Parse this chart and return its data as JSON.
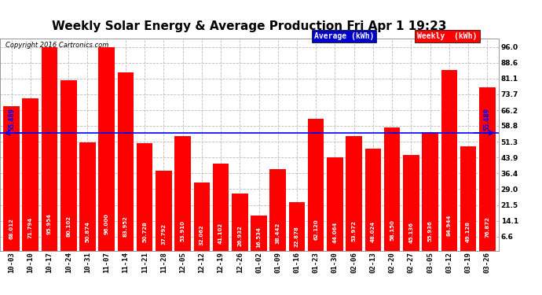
{
  "title": "Weekly Solar Energy & Average Production Fri Apr 1 19:23",
  "copyright": "Copyright 2016 Cartronics.com",
  "categories": [
    "10-03",
    "10-10",
    "10-17",
    "10-24",
    "10-31",
    "11-07",
    "11-14",
    "11-21",
    "11-28",
    "12-05",
    "12-12",
    "12-19",
    "12-26",
    "01-02",
    "01-09",
    "01-16",
    "01-23",
    "01-30",
    "02-06",
    "02-13",
    "02-20",
    "02-27",
    "03-05",
    "03-12",
    "03-19",
    "03-26"
  ],
  "values": [
    68.012,
    71.794,
    95.954,
    80.102,
    50.874,
    96.0,
    83.952,
    50.728,
    37.792,
    53.91,
    32.062,
    41.102,
    26.932,
    16.534,
    38.442,
    22.878,
    62.12,
    44.064,
    53.972,
    48.024,
    58.15,
    45.136,
    55.936,
    84.944,
    49.128,
    76.872
  ],
  "average": 55.489,
  "bar_color": "#ff0000",
  "avg_line_color": "#0000ff",
  "background_color": "#ffffff",
  "plot_bg_color": "#ffffff",
  "grid_color": "#bbbbbb",
  "yticks": [
    6.6,
    14.1,
    21.5,
    29.0,
    36.4,
    43.9,
    51.3,
    58.8,
    66.2,
    73.7,
    81.1,
    88.6,
    96.0
  ],
  "legend_avg_bg": "#0000cc",
  "legend_weekly_bg": "#ff0000",
  "legend_avg_text": "Average (kWh)",
  "legend_weekly_text": "Weekly  (kWh)",
  "avg_label": "55.489",
  "title_fontsize": 11,
  "bar_label_fontsize": 5,
  "tick_fontsize": 6.5,
  "ytick_fontsize": 6.5
}
